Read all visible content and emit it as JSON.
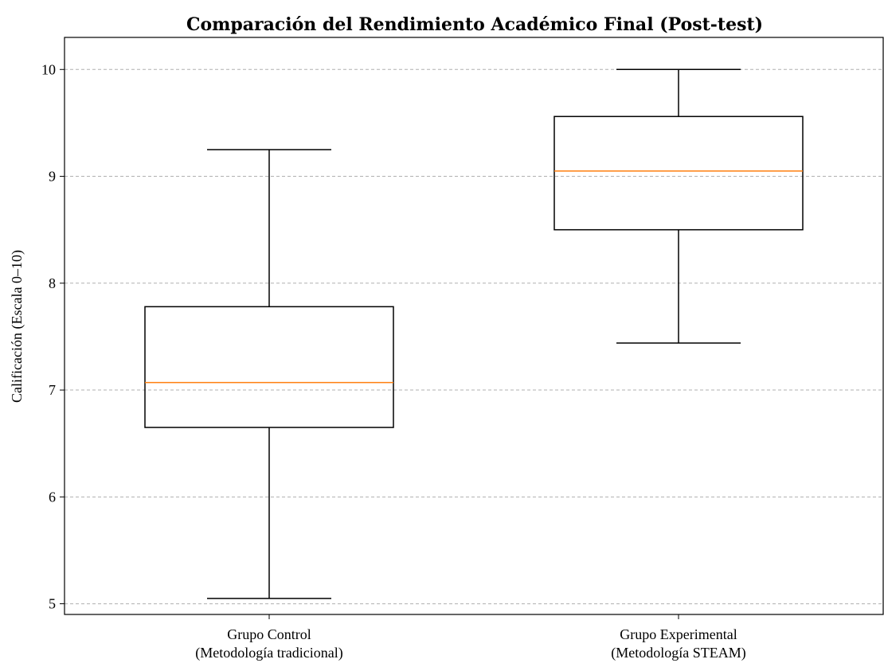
{
  "chart_data": {
    "type": "boxplot",
    "title": "Comparación del Rendimiento Académico Final (Post-test)",
    "ylabel": "Calificación (Escala 0–10)",
    "ylim": [
      4.9,
      10.3
    ],
    "yticks": [
      5,
      6,
      7,
      8,
      9,
      10
    ],
    "grid": "y-dashed",
    "categories": [
      {
        "line1": "Grupo Control",
        "line2": "(Metodología tradicional)",
        "whisker_low": 5.05,
        "q1": 6.65,
        "median": 7.07,
        "q3": 7.78,
        "whisker_high": 9.25
      },
      {
        "line1": "Grupo Experimental",
        "line2": "(Metodología STEAM)",
        "whisker_low": 7.44,
        "q1": 8.5,
        "median": 9.05,
        "q3": 9.56,
        "whisker_high": 10.0
      }
    ],
    "colors": {
      "box": "#000000",
      "median": "#ff7f0e",
      "grid": "#b0b0b0"
    }
  }
}
